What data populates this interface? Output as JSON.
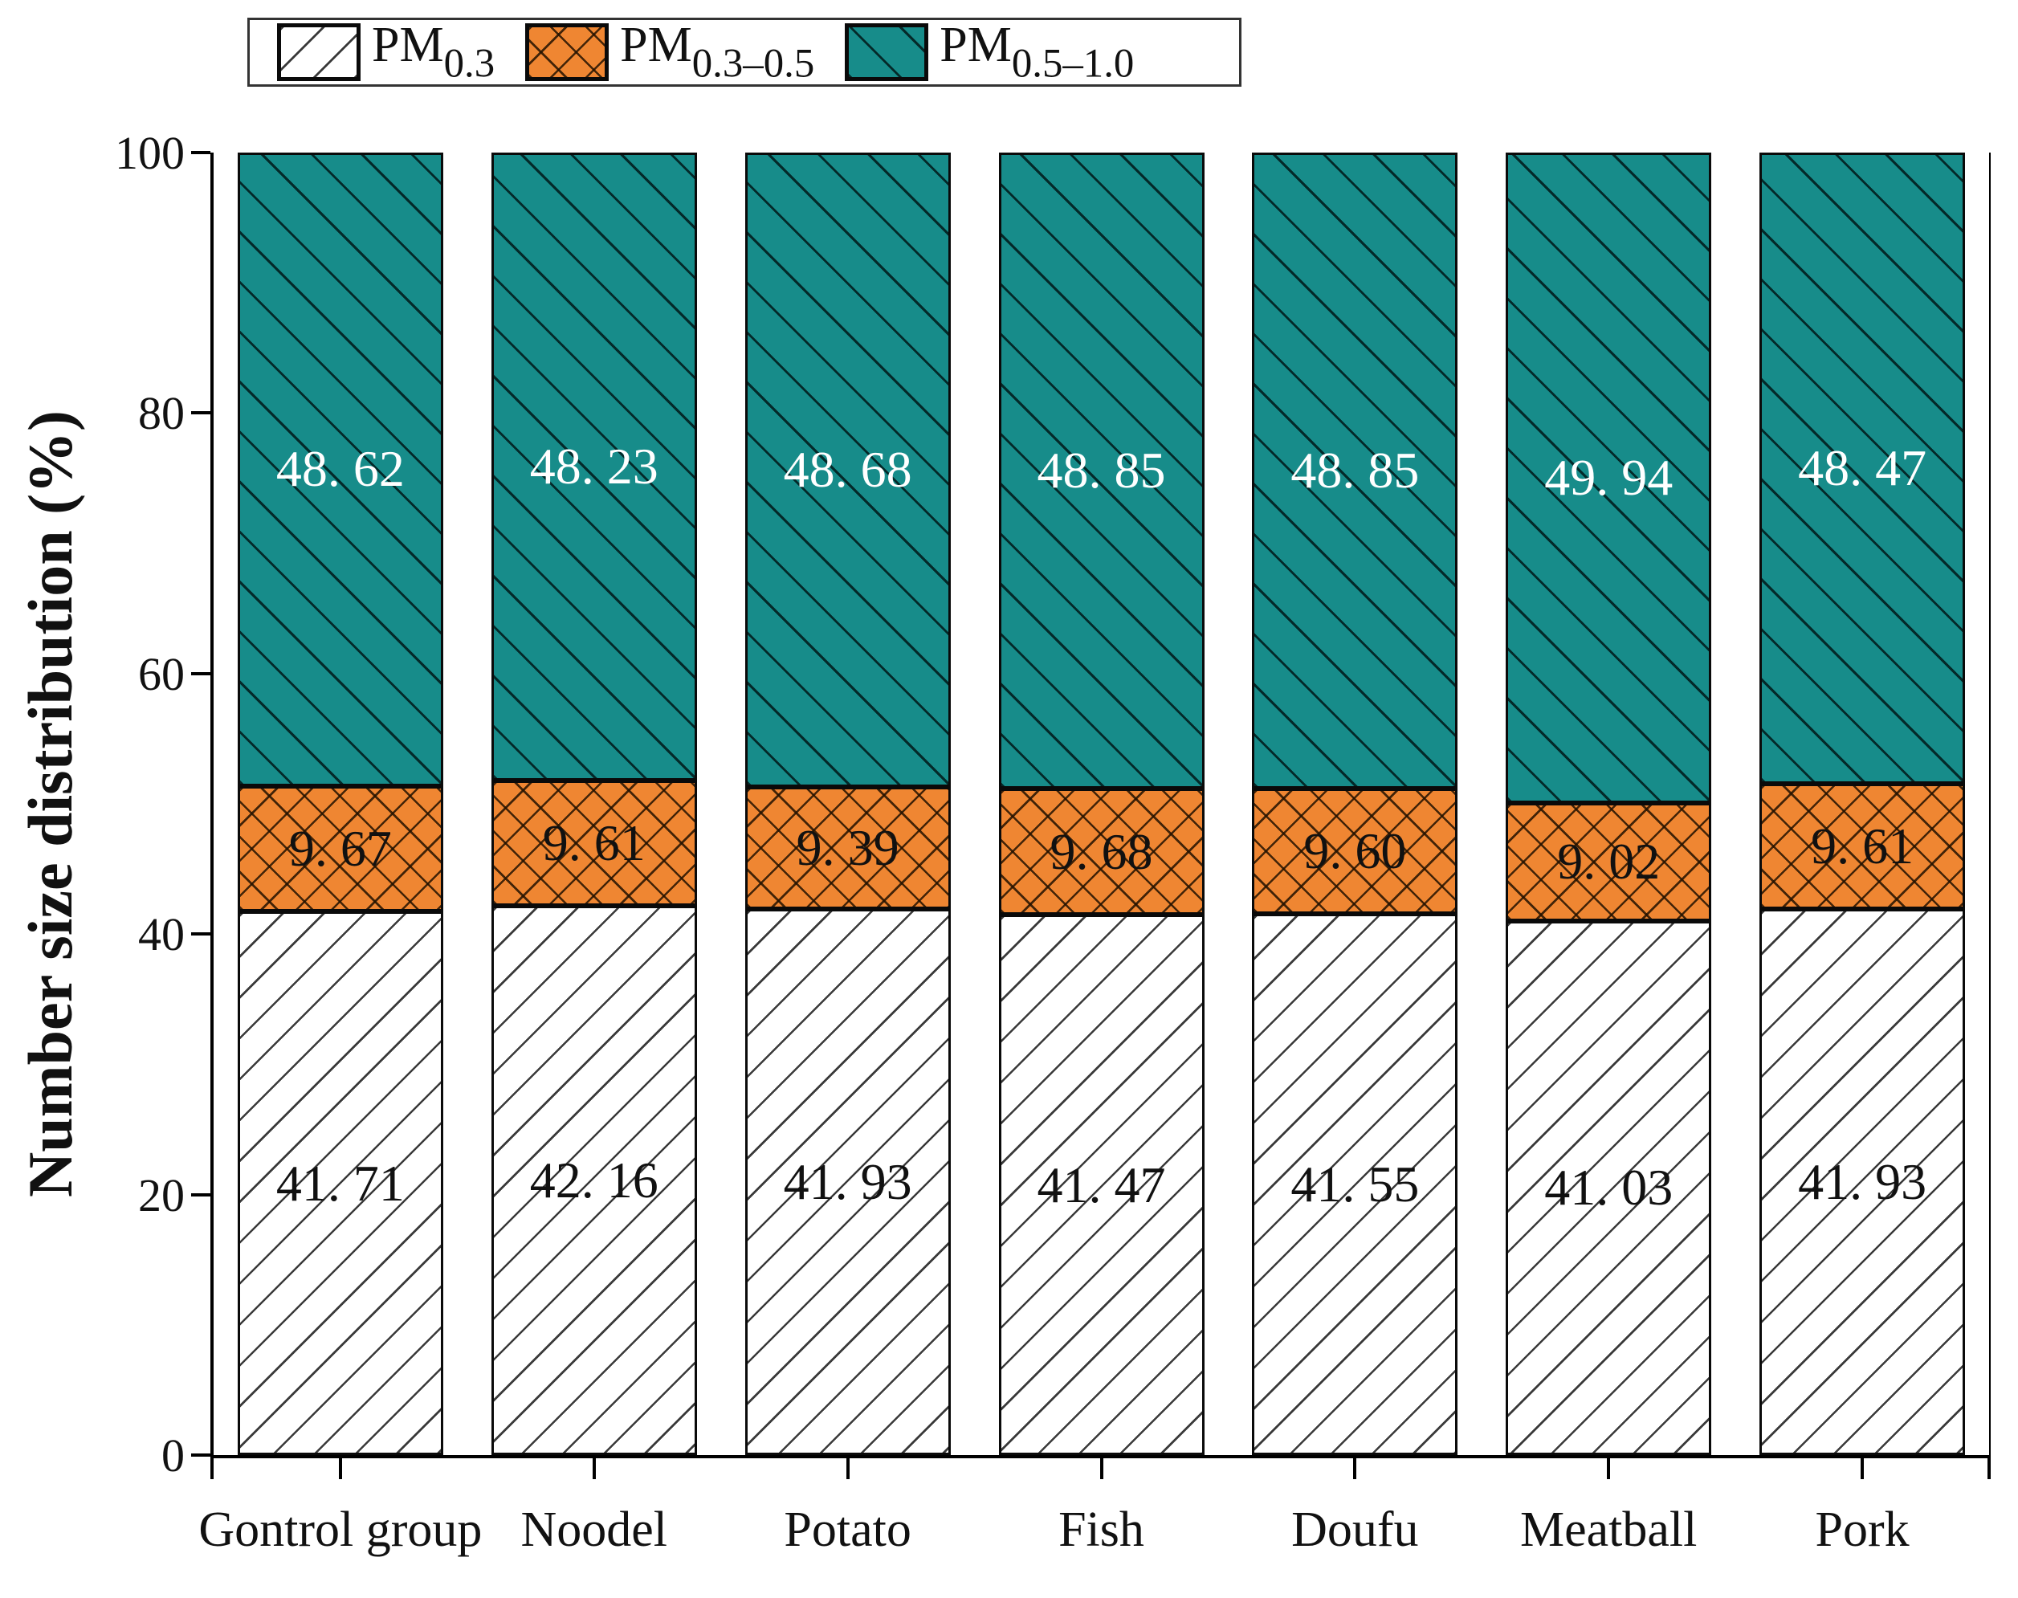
{
  "chart_data": {
    "type": "bar",
    "stacked": true,
    "orientation": "vertical",
    "title": "",
    "xlabel": "",
    "ylabel": "Number size distribution (%)",
    "ylim": [
      0,
      100
    ],
    "yticks": [
      0,
      20,
      40,
      60,
      80,
      100
    ],
    "grid": false,
    "legend_position": "top-left-outside",
    "categories": [
      "Gontrol group",
      "Noodel",
      "Potato",
      "Fish",
      "Doufu",
      "Meatball",
      "Pork"
    ],
    "legend": [
      {
        "base": "PM",
        "sub": "0.3"
      },
      {
        "base": "PM",
        "sub": "0.3–0.5"
      },
      {
        "base": "PM",
        "sub": "0.5–1.0"
      }
    ],
    "series": [
      {
        "name": "PM0.3",
        "values": [
          41.71,
          42.16,
          41.93,
          41.47,
          41.55,
          41.03,
          41.93
        ],
        "value_labels": [
          "41. 71",
          "42. 16",
          "41. 93",
          "41. 47",
          "41. 55",
          "41. 03",
          "41. 93"
        ],
        "fill_color": "#ffffff",
        "hatch": "diagonal-forward",
        "label_color": "#111111"
      },
      {
        "name": "PM0.3–0.5",
        "values": [
          9.67,
          9.61,
          9.39,
          9.68,
          9.6,
          9.02,
          9.61
        ],
        "value_labels": [
          "9. 67",
          "9. 61",
          "9. 39",
          "9. 68",
          "9. 60",
          "9. 02",
          "9. 61"
        ],
        "fill_color": "#ef8632",
        "hatch": "crosshatch",
        "label_color": "#111111"
      },
      {
        "name": "PM0.5–1.0",
        "values": [
          48.62,
          48.23,
          48.68,
          48.85,
          48.85,
          49.94,
          48.47
        ],
        "value_labels": [
          "48. 62",
          "48. 23",
          "48. 68",
          "48. 85",
          "48. 85",
          "49. 94",
          "48. 47"
        ],
        "fill_color": "#178c8a",
        "hatch": "diagonal-backward",
        "label_color": "#ffffff"
      }
    ]
  },
  "colors": {
    "pm03_fill": "#ffffff",
    "pm0305_fill": "#ef8632",
    "pm0510_fill": "#178c8a",
    "bar_border": "#0a0a0a",
    "axis": "#000000",
    "text": "#111111"
  }
}
